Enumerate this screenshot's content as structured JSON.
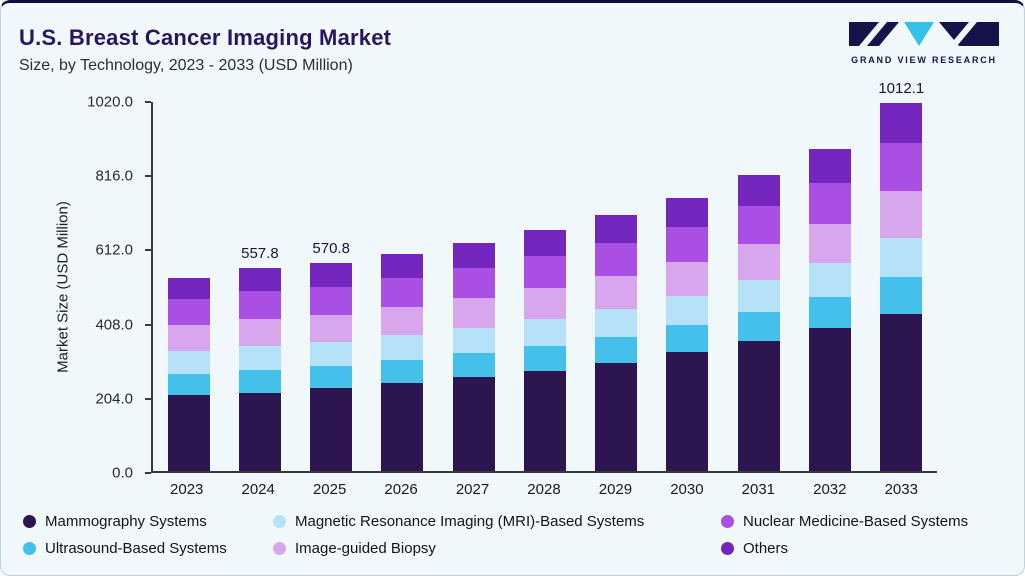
{
  "header": {
    "title": "U.S. Breast Cancer Imaging Market",
    "subtitle": "Size, by Technology, 2023 - 2033 (USD Million)",
    "logo_text": "GRAND VIEW RESEARCH"
  },
  "chart_data": {
    "type": "bar",
    "stacked": true,
    "title": "U.S. Breast Cancer Imaging Market Size, by Technology, 2023 - 2033 (USD Million)",
    "xlabel": "",
    "ylabel": "Market Size (USD Million)",
    "ylim": [
      0,
      1020
    ],
    "y_ticks": [
      "0.0",
      "204.0",
      "408.0",
      "612.0",
      "816.0",
      "1020.0"
    ],
    "grid": false,
    "legend_position": "bottom",
    "categories": [
      "2023",
      "2024",
      "2025",
      "2026",
      "2027",
      "2028",
      "2029",
      "2030",
      "2031",
      "2032",
      "2033"
    ],
    "series": [
      {
        "name": "Mammography Systems",
        "color": "#2d1650",
        "values": [
          210,
          215,
          228,
          242,
          258,
          276,
          296,
          326,
          358,
          392,
          432
        ]
      },
      {
        "name": "Ultrasound-Based Systems",
        "color": "#45c0ea",
        "values": [
          58,
          62,
          62,
          64,
          66,
          69,
          72,
          75,
          80,
          86,
          101
        ]
      },
      {
        "name": "Magnetic Resonance Imaging (MRI)-Based Systems",
        "color": "#b5e2f8",
        "values": [
          62,
          66,
          65,
          67,
          70,
          73,
          77,
          80,
          86,
          93,
          109
        ]
      },
      {
        "name": "Image-guided Biopsy",
        "color": "#d7a6ec",
        "values": [
          72,
          76,
          75,
          78,
          82,
          86,
          90,
          94,
          101,
          109,
          128
        ]
      },
      {
        "name": "Nuclear Medicine-Based Systems",
        "color": "#a94fe4",
        "values": [
          70,
          75,
          76,
          79,
          83,
          87,
          92,
          96,
          103,
          112,
          131
        ]
      },
      {
        "name": "Others",
        "color": "#7326bd",
        "values": [
          58,
          63.8,
          64.8,
          66,
          69,
          73,
          77,
          81,
          86,
          94,
          111.1
        ]
      }
    ],
    "bar_total_labels": [
      "",
      "557.8",
      "570.8",
      "",
      "",
      "",
      "",
      "",
      "",
      "",
      "1012.1"
    ]
  },
  "legend": {
    "items": [
      {
        "label": "Mammography Systems",
        "color": "#2d1650"
      },
      {
        "label": "Magnetic Resonance Imaging (MRI)-Based Systems",
        "color": "#b5e2f8"
      },
      {
        "label": "Nuclear Medicine-Based Systems",
        "color": "#a94fe4"
      },
      {
        "label": "Ultrasound-Based Systems",
        "color": "#45c0ea"
      },
      {
        "label": "Image-guided Biopsy",
        "color": "#d7a6ec"
      },
      {
        "label": "Others",
        "color": "#7326bd"
      }
    ]
  },
  "colors": {
    "card_background": "#f0f8fc",
    "top_border": "#0e0e3e",
    "title_text": "#2a1560",
    "logo_navy": "#14144a",
    "logo_cyan": "#35c0e8"
  }
}
